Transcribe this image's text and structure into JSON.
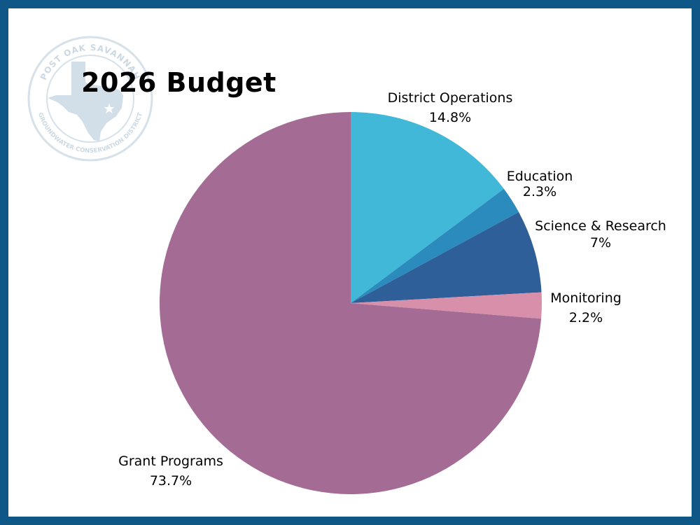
{
  "seal": {
    "name": "POST OAK SAVANNAH",
    "subtitle": "GROUNDWATER CONSERVATION DISTRICT"
  },
  "chart_data": {
    "type": "pie",
    "title": "2026 Budget",
    "slices": [
      {
        "label": "District Operations",
        "value": 14.8,
        "value_label": "14.8%",
        "color": "#42b8d8"
      },
      {
        "label": "Education",
        "value": 2.3,
        "value_label": "2.3%",
        "color": "#2b8bbd"
      },
      {
        "label": "Science & Research",
        "value": 7,
        "value_label": "7%",
        "color": "#2e5f98"
      },
      {
        "label": "Monitoring",
        "value": 2.2,
        "value_label": "2.2%",
        "color": "#d88fa9"
      },
      {
        "label": "Grant Programs",
        "value": 73.7,
        "value_label": "73.7%",
        "color": "#a46c95"
      }
    ],
    "start_angle": "12 o'clock",
    "direction": "clockwise",
    "legend": "none"
  }
}
